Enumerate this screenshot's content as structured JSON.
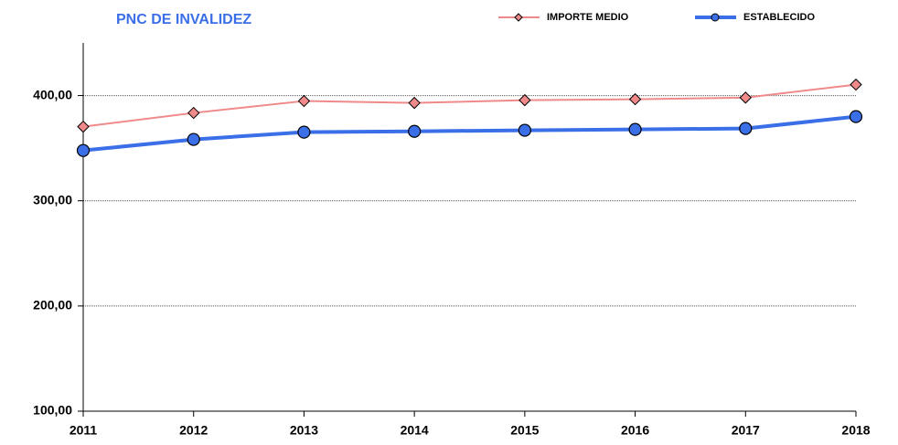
{
  "chart_data": {
    "type": "line",
    "title": "PNC DE INVALIDEZ",
    "categories": [
      "2011",
      "2012",
      "2013",
      "2014",
      "2015",
      "2016",
      "2017",
      "2018"
    ],
    "series": [
      {
        "name": "IMPORTE MEDIO",
        "color": "#f08a8a",
        "marker": "diamond",
        "marker_color": "#f08a8a",
        "values": [
          370.4,
          383.5,
          394.8,
          393,
          395.6,
          396.5,
          398,
          410.4
        ]
      },
      {
        "name": "ESTABLECIDO",
        "color": "#3b6fe8",
        "marker": "circle",
        "marker_color": "#3b6fe8",
        "values": [
          347.8,
          358.3,
          365.2,
          366,
          367,
          367.8,
          368.7,
          380
        ]
      }
    ],
    "ylim": [
      100,
      450
    ],
    "yticks": [
      {
        "value": 100,
        "label": "100,00"
      },
      {
        "value": 200,
        "label": "200,00"
      },
      {
        "value": 300,
        "label": "300,00"
      },
      {
        "value": 400,
        "label": "400,00"
      }
    ],
    "grid": true,
    "legend": "top"
  }
}
